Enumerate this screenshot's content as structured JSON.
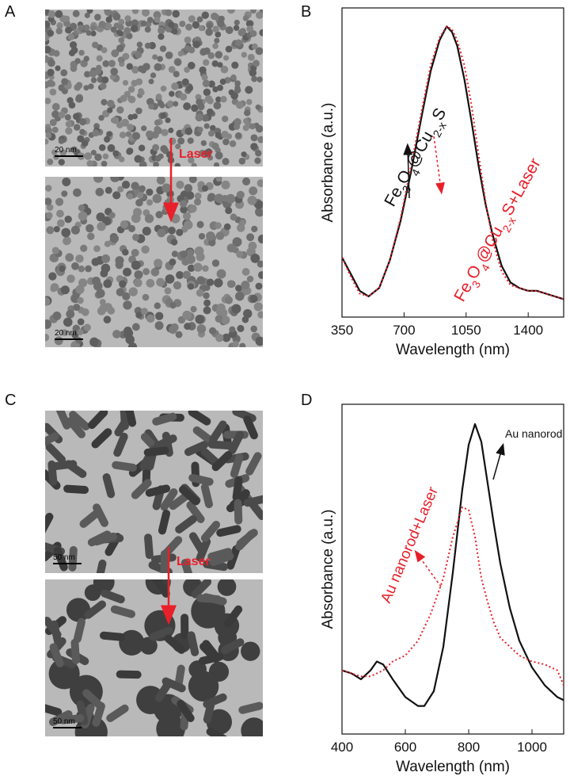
{
  "panels": {
    "A": "A",
    "B": "B",
    "C": "C",
    "D": "D"
  },
  "tem": {
    "A_scale_top": "20 nm",
    "A_scale_bottom": "20 nm",
    "A_laser": "Laser",
    "C_scale_top": "50 nm",
    "C_scale_bottom": "50 nm",
    "C_laser": "Laser"
  },
  "colors": {
    "black_curve": "#111111",
    "red_curve": "#e8202a",
    "tem_background": "#b9b9b9"
  },
  "chart_data": [
    {
      "id": "B",
      "type": "line",
      "xlabel": "Wavelength (nm)",
      "ylabel": "Absorbance (a.u.)",
      "xlim": [
        350,
        1600
      ],
      "x_ticks": [
        350,
        700,
        1050,
        1400
      ],
      "y_ticks": [],
      "grid": false,
      "annotations": {
        "black_label": "Fe3O4@Cu2-xS",
        "red_label": "Fe3O4@Cu2-xS+Laser"
      },
      "series": [
        {
          "key": "black",
          "style": "solid",
          "x": [
            350,
            400,
            450,
            500,
            560,
            620,
            680,
            740,
            800,
            850,
            900,
            940,
            970,
            1000,
            1040,
            1080,
            1120,
            1160,
            1200,
            1250,
            1300,
            1350,
            1400,
            1450,
            1500,
            1550,
            1600
          ],
          "y": [
            0.17,
            0.11,
            0.05,
            0.03,
            0.06,
            0.16,
            0.3,
            0.48,
            0.68,
            0.84,
            0.95,
            1.0,
            0.98,
            0.93,
            0.81,
            0.66,
            0.5,
            0.36,
            0.25,
            0.14,
            0.08,
            0.06,
            0.05,
            0.05,
            0.04,
            0.03,
            0.02
          ]
        },
        {
          "key": "red",
          "style": "dotted",
          "x": [
            350,
            400,
            450,
            500,
            560,
            620,
            680,
            740,
            800,
            850,
            900,
            940,
            970,
            1000,
            1040,
            1080,
            1120,
            1160,
            1200,
            1250,
            1300,
            1350,
            1400,
            1450,
            1500,
            1550,
            1600
          ],
          "y": [
            0.17,
            0.1,
            0.04,
            0.03,
            0.06,
            0.16,
            0.31,
            0.5,
            0.7,
            0.86,
            0.96,
            1.0,
            0.99,
            0.95,
            0.86,
            0.72,
            0.54,
            0.37,
            0.23,
            0.12,
            0.07,
            0.06,
            0.05,
            0.05,
            0.04,
            0.03,
            0.02
          ]
        }
      ]
    },
    {
      "id": "D",
      "type": "line",
      "xlabel": "Wavelength (nm)",
      "ylabel": "Absorbance (a.u.)",
      "xlim": [
        400,
        1100
      ],
      "x_ticks": [
        400,
        600,
        800,
        1000
      ],
      "y_ticks": [],
      "grid": false,
      "annotations": {
        "black_label": "Au nanorod",
        "red_label": "Au nanorod+Laser"
      },
      "series": [
        {
          "key": "black",
          "style": "solid",
          "x": [
            400,
            430,
            460,
            490,
            510,
            530,
            560,
            600,
            640,
            660,
            690,
            720,
            750,
            780,
            800,
            820,
            840,
            860,
            880,
            900,
            930,
            960,
            1000,
            1040,
            1080,
            1100
          ],
          "y": [
            0.17,
            0.16,
            0.14,
            0.17,
            0.2,
            0.19,
            0.14,
            0.08,
            0.05,
            0.05,
            0.1,
            0.25,
            0.5,
            0.78,
            0.93,
            1.0,
            0.94,
            0.8,
            0.66,
            0.53,
            0.38,
            0.27,
            0.18,
            0.12,
            0.08,
            0.07
          ]
        },
        {
          "key": "red",
          "style": "dotted",
          "x": [
            400,
            430,
            460,
            490,
            510,
            530,
            560,
            600,
            640,
            680,
            720,
            750,
            780,
            800,
            820,
            840,
            860,
            880,
            900,
            930,
            960,
            1000,
            1040,
            1080,
            1100
          ],
          "y": [
            0.17,
            0.16,
            0.15,
            0.15,
            0.16,
            0.17,
            0.2,
            0.22,
            0.27,
            0.36,
            0.48,
            0.62,
            0.72,
            0.71,
            0.62,
            0.48,
            0.4,
            0.33,
            0.28,
            0.25,
            0.22,
            0.2,
            0.19,
            0.17,
            0.12
          ]
        }
      ]
    }
  ]
}
